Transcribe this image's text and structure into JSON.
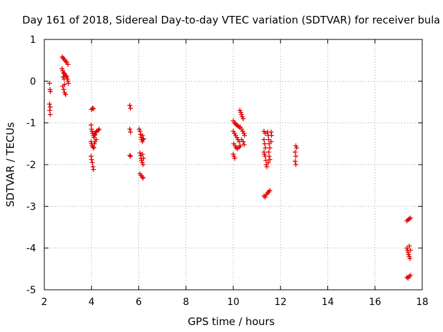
{
  "chart_data": {
    "type": "scatter",
    "title": "Day 161 of 2018, Sidereal Day-to-day VTEC variation (SDTVAR) for receiver bula",
    "xlabel": "GPS time / hours",
    "ylabel": "SDTVAR / TECUs",
    "xlim": [
      2,
      18
    ],
    "ylim": [
      -5,
      1
    ],
    "xticks": [
      2,
      4,
      6,
      8,
      10,
      12,
      14,
      16,
      18
    ],
    "yticks": [
      -5,
      -4,
      -3,
      -2,
      -1,
      0,
      1
    ],
    "grid": true,
    "marker": "+",
    "marker_color": "#e00000",
    "series": [
      {
        "name": "SDTVAR",
        "points": [
          [
            2.22,
            -0.05
          ],
          [
            2.24,
            -0.2
          ],
          [
            2.26,
            -0.25
          ],
          [
            2.22,
            -0.55
          ],
          [
            2.25,
            -0.62
          ],
          [
            2.23,
            -0.7
          ],
          [
            2.25,
            -0.8
          ],
          [
            2.76,
            0.58
          ],
          [
            2.8,
            0.55
          ],
          [
            2.85,
            0.52
          ],
          [
            2.9,
            0.48
          ],
          [
            2.95,
            0.45
          ],
          [
            3.0,
            0.4
          ],
          [
            2.75,
            0.3
          ],
          [
            2.78,
            0.25
          ],
          [
            2.82,
            0.2
          ],
          [
            2.85,
            0.18
          ],
          [
            2.88,
            0.15
          ],
          [
            2.92,
            0.12
          ],
          [
            2.95,
            0.1
          ],
          [
            2.98,
            0.05
          ],
          [
            3.0,
            0.0
          ],
          [
            3.02,
            -0.05
          ],
          [
            2.8,
            0.1
          ],
          [
            2.84,
            0.05
          ],
          [
            2.86,
            -0.08
          ],
          [
            2.78,
            -0.12
          ],
          [
            2.82,
            -0.2
          ],
          [
            2.86,
            -0.28
          ],
          [
            2.9,
            -0.32
          ],
          [
            4.0,
            -0.68
          ],
          [
            4.04,
            -0.65
          ],
          [
            4.08,
            -0.66
          ],
          [
            3.98,
            -1.05
          ],
          [
            4.0,
            -1.15
          ],
          [
            4.02,
            -1.2
          ],
          [
            4.05,
            -1.25
          ],
          [
            4.08,
            -1.3
          ],
          [
            4.1,
            -1.35
          ],
          [
            4.12,
            -1.3
          ],
          [
            4.15,
            -1.28
          ],
          [
            4.18,
            -1.22
          ],
          [
            4.22,
            -1.2
          ],
          [
            4.28,
            -1.18
          ],
          [
            4.32,
            -1.15
          ],
          [
            3.98,
            -1.45
          ],
          [
            4.0,
            -1.5
          ],
          [
            4.03,
            -1.55
          ],
          [
            4.06,
            -1.58
          ],
          [
            4.1,
            -1.6
          ],
          [
            4.12,
            -1.5
          ],
          [
            4.15,
            -1.45
          ],
          [
            4.2,
            -1.4
          ],
          [
            3.98,
            -1.8
          ],
          [
            4.0,
            -1.88
          ],
          [
            4.03,
            -1.95
          ],
          [
            4.06,
            -2.05
          ],
          [
            4.08,
            -2.12
          ],
          [
            5.62,
            -0.58
          ],
          [
            5.65,
            -0.65
          ],
          [
            5.62,
            -1.15
          ],
          [
            5.65,
            -1.22
          ],
          [
            5.62,
            -1.78
          ],
          [
            5.65,
            -1.8
          ],
          [
            6.02,
            -1.15
          ],
          [
            6.05,
            -1.2
          ],
          [
            6.08,
            -1.28
          ],
          [
            6.1,
            -1.35
          ],
          [
            6.12,
            -1.4
          ],
          [
            6.15,
            -1.45
          ],
          [
            6.18,
            -1.4
          ],
          [
            6.2,
            -1.38
          ],
          [
            6.15,
            -1.3
          ],
          [
            6.05,
            -1.72
          ],
          [
            6.08,
            -1.78
          ],
          [
            6.1,
            -1.85
          ],
          [
            6.12,
            -1.9
          ],
          [
            6.15,
            -1.95
          ],
          [
            6.18,
            -2.0
          ],
          [
            6.2,
            -1.85
          ],
          [
            6.15,
            -1.75
          ],
          [
            6.05,
            -2.22
          ],
          [
            6.1,
            -2.26
          ],
          [
            6.15,
            -2.3
          ],
          [
            6.18,
            -2.32
          ],
          [
            10.0,
            -0.95
          ],
          [
            10.05,
            -1.0
          ],
          [
            10.1,
            -1.02
          ],
          [
            10.15,
            -1.05
          ],
          [
            10.2,
            -1.08
          ],
          [
            10.25,
            -1.1
          ],
          [
            10.0,
            -1.2
          ],
          [
            10.05,
            -1.25
          ],
          [
            10.1,
            -1.3
          ],
          [
            10.15,
            -1.35
          ],
          [
            10.2,
            -1.4
          ],
          [
            10.25,
            -1.45
          ],
          [
            10.02,
            -1.5
          ],
          [
            10.08,
            -1.55
          ],
          [
            10.12,
            -1.6
          ],
          [
            10.18,
            -1.62
          ],
          [
            10.25,
            -1.58
          ],
          [
            10.3,
            -1.55
          ],
          [
            10.0,
            -1.75
          ],
          [
            10.03,
            -1.8
          ],
          [
            10.06,
            -1.85
          ],
          [
            10.28,
            -0.7
          ],
          [
            10.32,
            -0.75
          ],
          [
            10.35,
            -0.8
          ],
          [
            10.38,
            -0.85
          ],
          [
            10.42,
            -0.9
          ],
          [
            10.3,
            -1.1
          ],
          [
            10.35,
            -1.15
          ],
          [
            10.4,
            -1.2
          ],
          [
            10.45,
            -1.25
          ],
          [
            10.48,
            -1.3
          ],
          [
            10.35,
            -1.4
          ],
          [
            10.42,
            -1.45
          ],
          [
            10.46,
            -1.52
          ],
          [
            11.3,
            -1.2
          ],
          [
            11.35,
            -1.25
          ],
          [
            11.3,
            -1.4
          ],
          [
            11.33,
            -1.5
          ],
          [
            11.36,
            -1.6
          ],
          [
            11.3,
            -1.7
          ],
          [
            11.32,
            -1.75
          ],
          [
            11.35,
            -1.8
          ],
          [
            11.38,
            -1.9
          ],
          [
            11.4,
            -2.0
          ],
          [
            11.42,
            -2.05
          ],
          [
            11.45,
            -1.22
          ],
          [
            11.48,
            -1.3
          ],
          [
            11.5,
            -1.4
          ],
          [
            11.52,
            -1.5
          ],
          [
            11.55,
            -1.6
          ],
          [
            11.5,
            -1.7
          ],
          [
            11.52,
            -1.8
          ],
          [
            11.55,
            -1.88
          ],
          [
            11.48,
            -1.95
          ],
          [
            11.6,
            -1.22
          ],
          [
            11.62,
            -1.3
          ],
          [
            11.6,
            -1.45
          ],
          [
            11.3,
            -2.75
          ],
          [
            11.35,
            -2.78
          ],
          [
            11.4,
            -2.72
          ],
          [
            11.45,
            -2.68
          ],
          [
            11.5,
            -2.65
          ],
          [
            11.55,
            -2.62
          ],
          [
            12.65,
            -1.55
          ],
          [
            12.68,
            -1.6
          ],
          [
            12.62,
            -1.7
          ],
          [
            12.65,
            -1.8
          ],
          [
            12.62,
            -1.92
          ],
          [
            12.65,
            -2.0
          ],
          [
            17.35,
            -3.35
          ],
          [
            17.4,
            -3.32
          ],
          [
            17.45,
            -3.3
          ],
          [
            17.5,
            -3.28
          ],
          [
            17.35,
            -4.0
          ],
          [
            17.38,
            -4.05
          ],
          [
            17.4,
            -4.1
          ],
          [
            17.42,
            -4.15
          ],
          [
            17.45,
            -4.2
          ],
          [
            17.48,
            -4.25
          ],
          [
            17.5,
            -4.05
          ],
          [
            17.45,
            -3.95
          ],
          [
            17.35,
            -4.7
          ],
          [
            17.4,
            -4.72
          ],
          [
            17.45,
            -4.68
          ],
          [
            17.5,
            -4.65
          ]
        ]
      }
    ]
  }
}
